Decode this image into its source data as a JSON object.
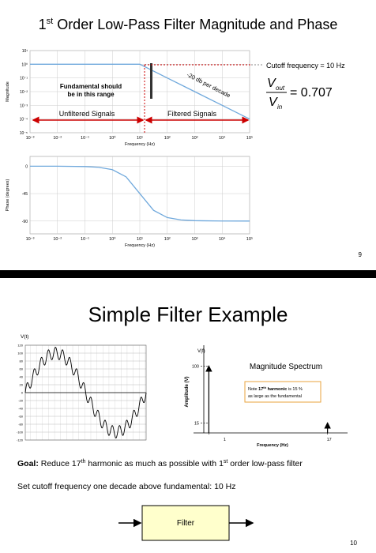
{
  "slides": [
    {
      "title": {
        "pre": "1",
        "sup": "st",
        "post": " Order Low-Pass Filter Magnitude and Phase"
      },
      "charts": [
        {
          "type": "line",
          "y_label": "Magnitude",
          "x_label": "Frequency (Hz)",
          "log_x": true,
          "log_y": true,
          "grid": true,
          "color": "#6fa8dc",
          "x": [
            0.001,
            0.01,
            0.1,
            1,
            10,
            100,
            1000,
            10000,
            100000
          ],
          "values": [
            1,
            1,
            1,
            1,
            1,
            0.1,
            0.01,
            0.001,
            0.0001
          ],
          "xlim": [
            0.001,
            100000
          ],
          "ylim": [
            1e-05,
            10
          ],
          "xticks": [
            {
              "value": 0.001,
              "label": "10⁻³"
            },
            {
              "value": 0.01,
              "label": "10⁻²"
            },
            {
              "value": 0.1,
              "label": "10⁻¹"
            },
            {
              "value": 1,
              "label": "10⁰"
            },
            {
              "value": 10,
              "label": "10¹"
            },
            {
              "value": 100,
              "label": "10²"
            },
            {
              "value": 1000,
              "label": "10³"
            },
            {
              "value": 10000,
              "label": "10⁴"
            },
            {
              "value": 100000,
              "label": "10⁵"
            }
          ],
          "yticks": [
            {
              "value": 10,
              "label": "10¹"
            },
            {
              "value": 1,
              "label": "10⁰"
            },
            {
              "value": 0.1,
              "label": "10⁻¹"
            },
            {
              "value": 0.01,
              "label": "10⁻²"
            },
            {
              "value": 0.001,
              "label": "10⁻³"
            },
            {
              "value": 0.0001,
              "label": "10⁻⁴"
            },
            {
              "value": 1e-05,
              "label": "10⁻⁵"
            }
          ]
        },
        {
          "type": "line",
          "y_label": "Phase (degrees)",
          "x_label": "Frequency (Hz)",
          "log_x": true,
          "log_y": false,
          "grid": true,
          "color": "#6fa8dc",
          "x": [
            0.001,
            0.01,
            0.1,
            0.316,
            1,
            3.16,
            10,
            31.6,
            100,
            316,
            1000,
            10000,
            100000
          ],
          "values": [
            0,
            -0.006,
            -0.6,
            -1.8,
            -5.7,
            -17.5,
            -45,
            -72.4,
            -84.3,
            -88.2,
            -89.4,
            -89.9,
            -90
          ],
          "xlim": [
            0.001,
            100000
          ],
          "ylim": [
            -111,
            16
          ],
          "xticks": [
            {
              "value": 0.001,
              "label": "10⁻³"
            },
            {
              "value": 0.01,
              "label": "10⁻²"
            },
            {
              "value": 0.1,
              "label": "10⁻¹"
            },
            {
              "value": 1,
              "label": "10⁰"
            },
            {
              "value": 10,
              "label": "10¹"
            },
            {
              "value": 100,
              "label": "10²"
            },
            {
              "value": 1000,
              "label": "10³"
            },
            {
              "value": 10000,
              "label": "10⁴"
            },
            {
              "value": 100000,
              "label": "10⁵"
            }
          ],
          "yticks": [
            0,
            -45,
            -90
          ]
        }
      ],
      "annotations": {
        "slope": "-20 db per decade",
        "fundamental": [
          "Fundamental should",
          "be in this range"
        ],
        "unfiltered": "Unfiltered Signals",
        "filtered": "Filtered Signals",
        "cutoff": "Cutoff frequency = 10 Hz",
        "equation": {
          "num": "V",
          "num_sub": "out",
          "den": "V",
          "den_sub": "in",
          "rhs": "= 0.707"
        }
      },
      "page_number": "9"
    },
    {
      "title": "Simple Filter Example",
      "charts": [
        {
          "type": "line",
          "y_label": "V(t)",
          "grid": true,
          "color": "#000000",
          "ylim": [
            -120,
            120
          ],
          "yticks": [
            120,
            100,
            80,
            60,
            40,
            20,
            0,
            -20,
            -40,
            -60,
            -80,
            -100,
            -120
          ]
        },
        {
          "type": "bar",
          "title": "Magnitude Spectrum",
          "top_label": "V(f)",
          "y_label": "Amplitude (V)",
          "x_label": "Frequency (Hz)",
          "color": "#000000",
          "x": [
            1,
            17
          ],
          "values": [
            100,
            15
          ],
          "xlim": [
            0,
            19.7
          ],
          "ylim": [
            0,
            131
          ],
          "xticks": [
            1,
            17
          ],
          "yticks": [
            100,
            15
          ],
          "note": {
            "parts": [
              "Note ",
              "17",
              "th",
              " harmonic",
              " is 15 %"
            ],
            "line2": "as large as the fundamental"
          }
        }
      ],
      "goal": {
        "label": "Goal:",
        "parts": [
          " Reduce 17",
          "th",
          " harmonic as much as possible with 1",
          "st",
          " order low-pass filter"
        ]
      },
      "cutoff_text": "Set cutoff frequency one decade above fundamental: 10 Hz",
      "block": "Filter",
      "page_number": "10"
    }
  ]
}
